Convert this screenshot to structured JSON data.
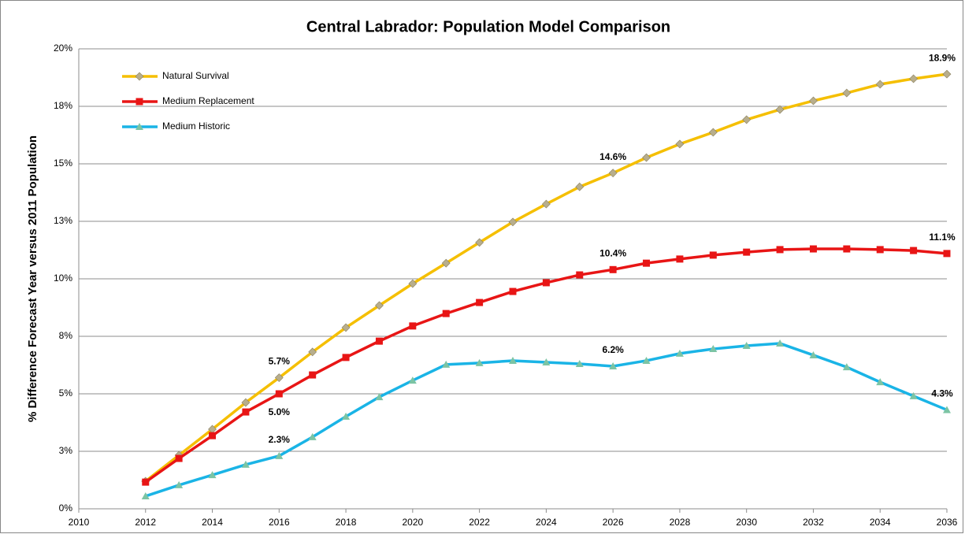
{
  "chart_data": {
    "type": "line",
    "title": "Central Labrador: Population  Model Comparison",
    "y_label": "% Difference Forecast Year versus 2011 Population",
    "x": [
      2012,
      2013,
      2014,
      2015,
      2016,
      2017,
      2018,
      2019,
      2020,
      2021,
      2022,
      2023,
      2024,
      2025,
      2026,
      2027,
      2028,
      2029,
      2030,
      2031,
      2032,
      2033,
      2034,
      2035,
      2036
    ],
    "xlim": [
      2010,
      2036
    ],
    "xticks": [
      2010,
      2012,
      2014,
      2016,
      2018,
      2020,
      2022,
      2024,
      2026,
      2028,
      2030,
      2032,
      2034,
      2036
    ],
    "ylim": [
      0,
      20
    ],
    "yticks": [
      {
        "value": 0,
        "label": "0%"
      },
      {
        "value": 2.5,
        "label": "3%"
      },
      {
        "value": 5,
        "label": "5%"
      },
      {
        "value": 7.5,
        "label": "8%"
      },
      {
        "value": 10,
        "label": "10%"
      },
      {
        "value": 12.5,
        "label": "13%"
      },
      {
        "value": 15,
        "label": "15%"
      },
      {
        "value": 17.5,
        "label": "18%"
      },
      {
        "value": 20,
        "label": "20%"
      }
    ],
    "grid": true,
    "legend": "upper left",
    "series": [
      {
        "name": "Natural Survival",
        "color": "#f5bf00",
        "marker": "diamond",
        "marker_color": "#b8ae8c",
        "values": [
          1.2,
          2.33,
          3.46,
          4.62,
          5.7,
          6.82,
          7.88,
          8.84,
          9.79,
          10.68,
          11.58,
          12.47,
          13.25,
          14.0,
          14.6,
          15.27,
          15.86,
          16.37,
          16.92,
          17.36,
          17.74,
          18.08,
          18.46,
          18.7,
          18.9
        ],
        "value_labels": [
          null,
          null,
          null,
          null,
          "5.7%",
          null,
          null,
          null,
          null,
          null,
          null,
          null,
          null,
          null,
          "14.6%",
          null,
          null,
          null,
          null,
          null,
          null,
          null,
          null,
          null,
          "18.9%"
        ]
      },
      {
        "name": "Medium Replacement",
        "color": "#e81515",
        "marker": "square",
        "marker_color": "#e81515",
        "values": [
          1.16,
          2.19,
          3.18,
          4.21,
          5.0,
          5.82,
          6.58,
          7.29,
          7.95,
          8.49,
          8.97,
          9.45,
          9.83,
          10.17,
          10.4,
          10.68,
          10.86,
          11.03,
          11.16,
          11.27,
          11.3,
          11.3,
          11.27,
          11.23,
          11.1
        ],
        "value_labels": [
          null,
          null,
          null,
          null,
          "5.0%",
          null,
          null,
          null,
          null,
          null,
          null,
          null,
          null,
          null,
          "10.4%",
          null,
          null,
          null,
          null,
          null,
          null,
          null,
          null,
          null,
          "11.1%"
        ]
      },
      {
        "name": "Medium Historic",
        "color": "#1ab4e6",
        "marker": "triangle",
        "marker_color": "#7cc4a4",
        "values": [
          0.55,
          1.03,
          1.47,
          1.92,
          2.3,
          3.12,
          4.01,
          4.86,
          5.58,
          6.27,
          6.34,
          6.44,
          6.37,
          6.3,
          6.2,
          6.44,
          6.75,
          6.95,
          7.09,
          7.19,
          6.68,
          6.16,
          5.51,
          4.9,
          4.3
        ],
        "value_labels": [
          null,
          null,
          null,
          null,
          "2.3%",
          null,
          null,
          null,
          null,
          null,
          null,
          null,
          null,
          null,
          "6.2%",
          null,
          null,
          null,
          null,
          null,
          null,
          null,
          null,
          null,
          "4.3%"
        ]
      }
    ]
  }
}
